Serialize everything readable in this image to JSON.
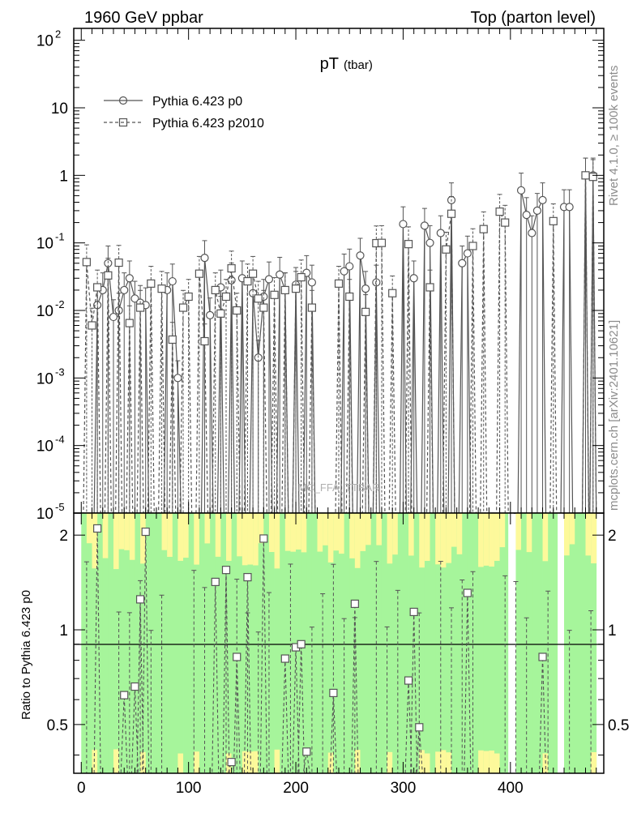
{
  "header": {
    "left": "1960 GeV ppbar",
    "right": "Top (parton level)"
  },
  "side_text": {
    "upper": "Rivet 4.1.0, ≥ 100k events",
    "lower": "mcplots.cern.ch [arXiv:2401.10621]"
  },
  "watermark": "MC_FFA_TTBAR",
  "colors": {
    "p0": "#555555",
    "p2010": "#555555",
    "band_green": "#a6f59b",
    "band_yellow": "#fdf99b"
  },
  "chart_data": {
    "type": "line",
    "title_main": "pT",
    "title_sub": "(tbar)",
    "legend": [
      "Pythia 6.423 p0",
      "Pythia 6.423 p2010"
    ],
    "xlim": [
      -7,
      487
    ],
    "ylim_log": [
      1e-05,
      150
    ],
    "x_ticks": [
      0,
      100,
      200,
      300,
      400
    ],
    "x_tick_labels": [
      "0",
      "100",
      "200",
      "300",
      "400"
    ],
    "y_ticks": [
      {
        "base": "10",
        "exp": "-5"
      },
      {
        "base": "10",
        "exp": "-4"
      },
      {
        "base": "10",
        "exp": "-3"
      },
      {
        "base": "10",
        "exp": "-2"
      },
      {
        "base": "10",
        "exp": "-1"
      },
      {
        "base": "1",
        "exp": ""
      },
      {
        "base": "10",
        "exp": ""
      },
      {
        "base": "10",
        "exp": "2"
      }
    ],
    "ratio_ylabel": "Ratio to Pythia 6.423 p0",
    "ratio_ylim": [
      0.35,
      2.35
    ],
    "ratio_ticks": [
      "0.5",
      "1",
      "2"
    ],
    "series": [
      {
        "name": "Pythia 6.423 p0",
        "marker": "circle",
        "points": [
          [
            15,
            0.012
          ],
          [
            20,
            0.02
          ],
          [
            25,
            0.05
          ],
          [
            30,
            0.008
          ],
          [
            35,
            0.01
          ],
          [
            40,
            0.02
          ],
          [
            45,
            0.03
          ],
          [
            50,
            0.015
          ],
          [
            55,
            0.013
          ],
          [
            60,
            0.012
          ],
          [
            80,
            0.02
          ],
          [
            85,
            0.027
          ],
          [
            90,
            0.001
          ],
          [
            115,
            0.06
          ],
          [
            120,
            0.0085
          ],
          [
            130,
            0.022
          ],
          [
            140,
            0.028
          ],
          [
            150,
            0.03
          ],
          [
            160,
            0.018
          ],
          [
            165,
            0.002
          ],
          [
            170,
            0.016
          ],
          [
            175,
            0.029
          ],
          [
            185,
            0.034
          ],
          [
            190,
            0.02
          ],
          [
            200,
            0.024
          ],
          [
            210,
            0.036
          ],
          [
            215,
            0.026
          ],
          [
            245,
            0.038
          ],
          [
            250,
            0.045
          ],
          [
            260,
            0.065
          ],
          [
            265,
            0.021
          ],
          [
            275,
            0.026
          ],
          [
            300,
            0.19
          ],
          [
            310,
            0.03
          ],
          [
            320,
            0.18
          ],
          [
            325,
            0.1
          ],
          [
            335,
            0.14
          ],
          [
            345,
            0.43
          ],
          [
            355,
            0.05
          ],
          [
            360,
            0.07
          ],
          [
            410,
            0.6
          ],
          [
            415,
            0.26
          ],
          [
            420,
            0.14
          ],
          [
            425,
            0.3
          ],
          [
            430,
            0.43
          ],
          [
            450,
            0.34
          ],
          [
            455,
            0.34
          ],
          [
            470,
            1.0
          ],
          [
            477,
            1.0
          ]
        ]
      },
      {
        "name": "Pythia 6.423 p2010",
        "marker": "square",
        "points": [
          [
            5,
            0.052
          ],
          [
            10,
            0.006
          ],
          [
            15,
            0.022
          ],
          [
            25,
            0.033
          ],
          [
            35,
            0.051
          ],
          [
            45,
            0.0065
          ],
          [
            55,
            0.011
          ],
          [
            65,
            0.025
          ],
          [
            75,
            0.021
          ],
          [
            85,
            0.0037
          ],
          [
            95,
            0.011
          ],
          [
            100,
            0.016
          ],
          [
            110,
            0.035
          ],
          [
            115,
            0.0035
          ],
          [
            125,
            0.02
          ],
          [
            130,
            0.009
          ],
          [
            135,
            0.016
          ],
          [
            140,
            0.042
          ],
          [
            145,
            0.01
          ],
          [
            155,
            0.027
          ],
          [
            160,
            0.035
          ],
          [
            165,
            0.015
          ],
          [
            170,
            0.011
          ],
          [
            180,
            0.017
          ],
          [
            190,
            0.02
          ],
          [
            200,
            0.021
          ],
          [
            205,
            0.031
          ],
          [
            215,
            0.011
          ],
          [
            240,
            0.025
          ],
          [
            250,
            0.016
          ],
          [
            265,
            0.0095
          ],
          [
            275,
            0.099
          ],
          [
            280,
            0.1
          ],
          [
            290,
            0.018
          ],
          [
            305,
            0.096
          ],
          [
            325,
            0.022
          ],
          [
            340,
            0.08
          ],
          [
            345,
            0.27
          ],
          [
            365,
            0.09
          ],
          [
            375,
            0.16
          ],
          [
            390,
            0.29
          ],
          [
            395,
            0.2
          ],
          [
            440,
            0.21
          ],
          [
            470,
            1.0
          ],
          [
            477,
            0.95
          ]
        ]
      }
    ],
    "ratio_points": [
      [
        15,
        2.1
      ],
      [
        40,
        0.62
      ],
      [
        50,
        0.66
      ],
      [
        55,
        1.25
      ],
      [
        60,
        2.05
      ],
      [
        125,
        1.42
      ],
      [
        135,
        1.55
      ],
      [
        140,
        0.38
      ],
      [
        145,
        0.82
      ],
      [
        155,
        1.47
      ],
      [
        170,
        1.95
      ],
      [
        190,
        0.81
      ],
      [
        200,
        0.88
      ],
      [
        205,
        0.9
      ],
      [
        210,
        0.41
      ],
      [
        235,
        0.63
      ],
      [
        255,
        1.21
      ],
      [
        305,
        0.69
      ],
      [
        310,
        1.14
      ],
      [
        315,
        0.49
      ],
      [
        360,
        1.31
      ],
      [
        430,
        0.82
      ]
    ]
  }
}
